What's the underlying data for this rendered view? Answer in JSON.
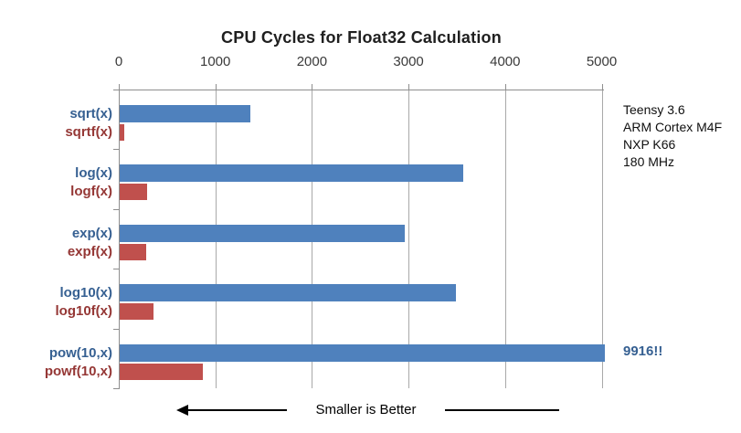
{
  "title": "CPU Cycles for Float32 Calculation",
  "chart_data": {
    "type": "bar",
    "orientation": "horizontal",
    "title": "CPU Cycles for Float32 Calculation",
    "xlabel": "",
    "ylabel": "",
    "xlim": [
      0,
      5000
    ],
    "x_ticks": [
      "0",
      "1000",
      "2000",
      "3000",
      "4000",
      "5000"
    ],
    "x_tick_values": [
      0,
      1000,
      2000,
      3000,
      4000,
      5000
    ],
    "grid": true,
    "note": "pow(10,x) bar is clipped at the right edge of the plot; its true value is shown by the 9916!! callout",
    "groups": [
      {
        "blue_label": "sqrt(x)",
        "blue_value": 1354,
        "red_label": "sqrtf(x)",
        "red_value": 46
      },
      {
        "blue_label": "log(x)",
        "blue_value": 3557,
        "red_label": "logf(x)",
        "red_value": 282
      },
      {
        "blue_label": "exp(x)",
        "blue_value": 2952,
        "red_label": "expf(x)",
        "red_value": 273
      },
      {
        "blue_label": "log10(x)",
        "blue_value": 3484,
        "red_label": "log10f(x)",
        "red_value": 346
      },
      {
        "blue_label": "pow(10,x)",
        "blue_value": 9916,
        "red_label": "powf(10,x)",
        "red_value": 858,
        "blue_annotation": "9916!!"
      }
    ]
  },
  "annotations": {
    "pow_callout": "9916!!",
    "device_info": [
      "Teensy 3.6",
      "ARM Cortex M4F",
      "NXP K66",
      "180 MHz"
    ],
    "arrow_note": "Smaller is Better"
  },
  "colors": {
    "bar_blue": "#4F81BD",
    "bar_red": "#C0504D",
    "label_blue": "#366092",
    "label_red": "#953735",
    "callout_blue": "#366092",
    "gridline": "#a9a9a9",
    "axis": "#8e8e8e",
    "title_text": "#1f1f1f",
    "tick_text": "#3a3a3a"
  }
}
